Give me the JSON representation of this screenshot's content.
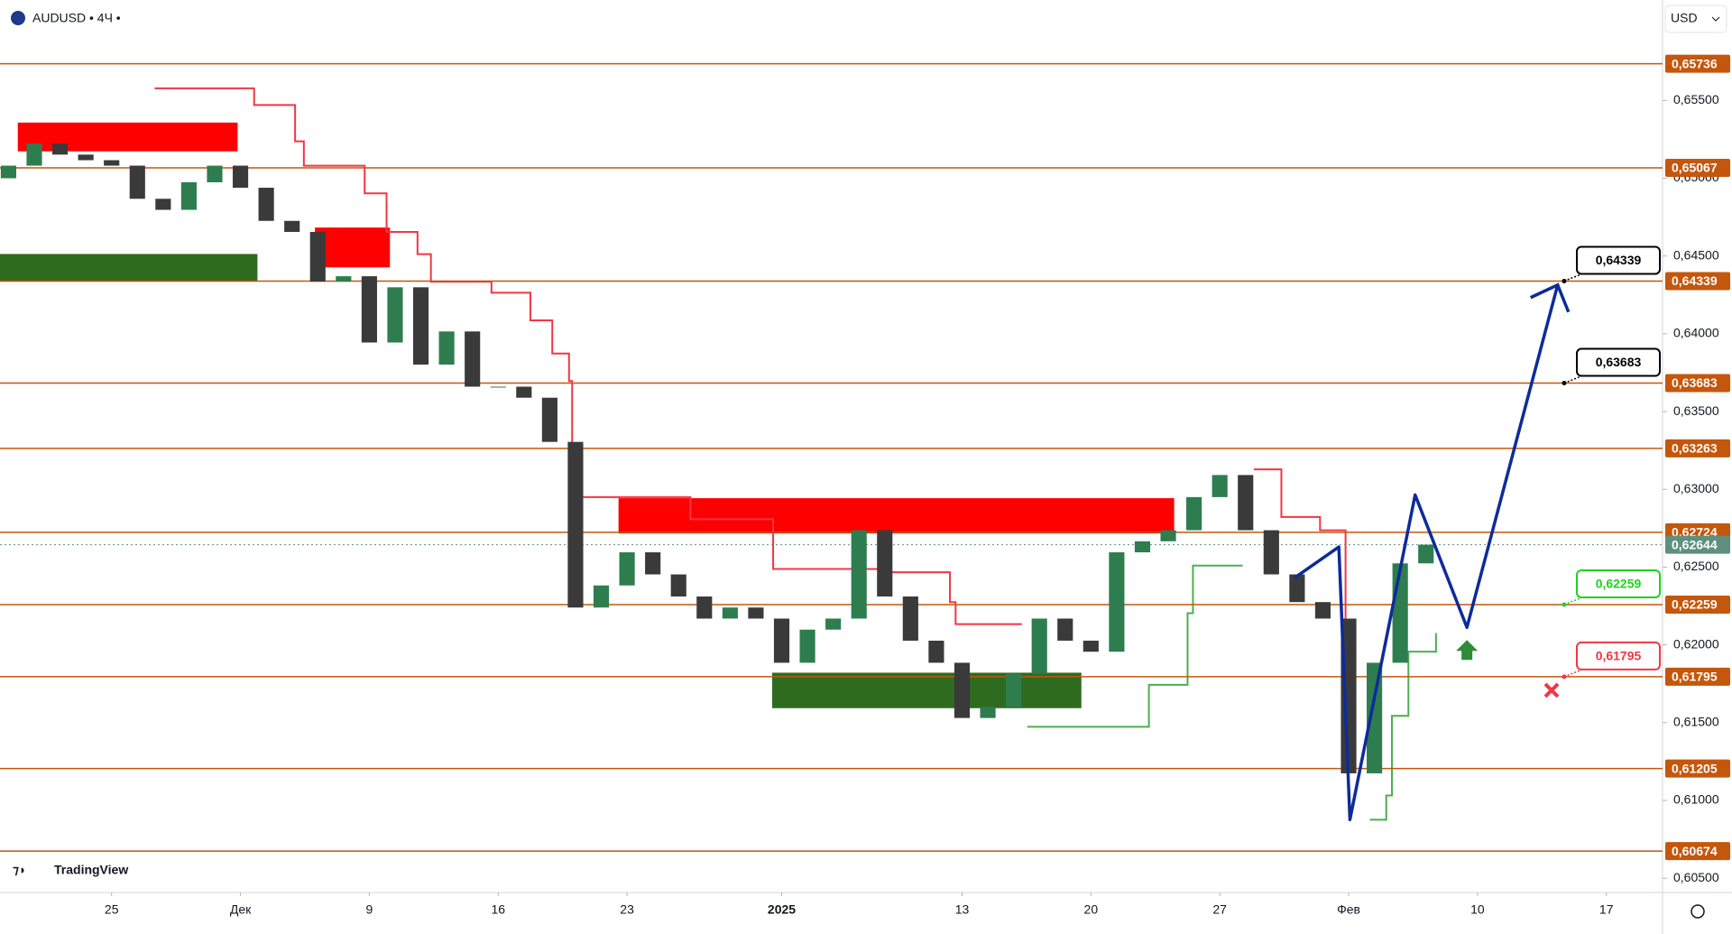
{
  "header": {
    "symbol": "AUDUSD • 4Ч •",
    "currency": "USD",
    "logo": "TradingView"
  },
  "chart_data": {
    "type": "candlestick",
    "x": [
      -4,
      -3,
      -2,
      -1,
      0,
      1,
      2,
      3,
      4,
      5,
      6,
      7,
      8,
      9,
      10,
      11,
      12,
      13,
      14,
      15,
      16,
      17,
      18,
      19,
      20,
      21,
      22,
      23,
      24,
      25,
      26,
      27,
      28,
      29,
      30,
      31,
      32,
      33,
      34,
      35,
      36,
      37,
      38,
      39,
      40,
      41,
      42,
      43,
      44,
      45,
      46,
      47,
      48,
      49,
      50,
      51
    ],
    "open": [
      0.65,
      0.65081,
      0.65223,
      0.65152,
      0.65116,
      0.65081,
      0.64868,
      0.64797,
      0.64974,
      0.65081,
      0.64939,
      0.64726,
      0.64655,
      0.64335,
      0.6437,
      0.63944,
      0.64299,
      0.63802,
      0.64015,
      0.6366,
      0.6366,
      0.63589,
      0.63305,
      0.6224,
      0.62382,
      0.62595,
      0.62453,
      0.62311,
      0.62169,
      0.6224,
      0.62169,
      0.61885,
      0.62098,
      0.62169,
      0.62737,
      0.62311,
      0.62027,
      0.61885,
      0.6153,
      0.61601,
      0.61814,
      0.62169,
      0.62027,
      0.61956,
      0.62595,
      0.62666,
      0.62737,
      0.6295,
      0.63092,
      0.62737,
      0.62453,
      0.62275,
      0.62169,
      0.61174,
      0.61885,
      0.62524
    ],
    "close": [
      0.65081,
      0.65223,
      0.65152,
      0.65116,
      0.65081,
      0.64868,
      0.64797,
      0.64974,
      0.65081,
      0.64939,
      0.64726,
      0.64655,
      0.64335,
      0.6437,
      0.63944,
      0.64299,
      0.63802,
      0.64015,
      0.6366,
      0.6366,
      0.63589,
      0.63305,
      0.6224,
      0.62382,
      0.62595,
      0.62453,
      0.62311,
      0.62169,
      0.6224,
      0.62169,
      0.61885,
      0.62098,
      0.62169,
      0.62737,
      0.62311,
      0.62027,
      0.61885,
      0.6153,
      0.61601,
      0.61814,
      0.62169,
      0.62027,
      0.61956,
      0.62595,
      0.62666,
      0.62737,
      0.6295,
      0.63092,
      0.62737,
      0.62453,
      0.62275,
      0.62169,
      0.61174,
      0.61885,
      0.62524,
      0.62644
    ],
    "up_color": "#2e7d4f",
    "down_color": "#3a3a3a",
    "xlim": [
      -4.33,
      60.18
    ],
    "xticks": [
      {
        "value": 0,
        "label": "25"
      },
      {
        "value": 5,
        "label": "Дек"
      },
      {
        "value": 10,
        "label": "9"
      },
      {
        "value": 15,
        "label": "16"
      },
      {
        "value": 20,
        "label": "23"
      },
      {
        "value": 26,
        "label": "2025"
      },
      {
        "value": 33,
        "label": "13"
      },
      {
        "value": 38,
        "label": "20"
      },
      {
        "value": 43,
        "label": "27"
      },
      {
        "value": 48,
        "label": "Фев"
      },
      {
        "value": 53,
        "label": "10"
      },
      {
        "value": 58,
        "label": "17"
      }
    ],
    "ylim": [
      0.60408,
      0.66146
    ],
    "yticks": [
      {
        "value": 0.655,
        "label": "0,65500"
      },
      {
        "value": 0.65,
        "label": "0,65000"
      },
      {
        "value": 0.645,
        "label": "0,64500"
      },
      {
        "value": 0.64,
        "label": "0,64000"
      },
      {
        "value": 0.635,
        "label": "0,63500"
      },
      {
        "value": 0.63,
        "label": "0,63000"
      },
      {
        "value": 0.625,
        "label": "0,62500"
      },
      {
        "value": 0.62,
        "label": "0,62000"
      },
      {
        "value": 0.615,
        "label": "0,61500"
      },
      {
        "value": 0.61,
        "label": "0,61000"
      },
      {
        "value": 0.605,
        "label": "0,60500"
      }
    ],
    "levels": {
      "color": "#c4570c",
      "values": [
        0.65736,
        0.65067,
        0.64339,
        0.63683,
        0.63263,
        0.62724,
        0.62259,
        0.61795,
        0.61205,
        0.60674
      ],
      "labels": [
        "0,65736",
        "0,65067",
        "0,64339",
        "0,63683",
        "0,63263",
        "0,62724",
        "0,62259",
        "0,61795",
        "0,61205",
        "0,60674"
      ]
    },
    "last_price": {
      "value": 0.62644,
      "label": "0,62644",
      "color": "#5e8f7f"
    },
    "zones": [
      {
        "color": "#ff0000",
        "x": [
          -3.64,
          4.89
        ],
        "y": [
          0.65173,
          0.65358
        ]
      },
      {
        "color": "#2e6b1f",
        "x": [
          -4.33,
          5.66
        ],
        "y": [
          0.64335,
          0.64513
        ]
      },
      {
        "color": "#ff0000",
        "x": [
          7.89,
          10.8
        ],
        "y": [
          0.64427,
          0.64683
        ]
      },
      {
        "color": "#ff0000",
        "x": [
          19.67,
          41.23
        ],
        "y": [
          0.62716,
          0.62943
        ]
      },
      {
        "color": "#2e6b1f",
        "x": [
          25.63,
          37.63
        ],
        "y": [
          0.61593,
          0.61821
        ]
      }
    ],
    "trails": [
      {
        "color": "#f23645",
        "x": [
          1.67,
          5.53,
          7.12,
          7.46,
          9.82,
          10.67,
          11.87,
          12.39,
          14.74,
          16.25,
          17.1,
          17.75,
          17.87,
          22.46,
          25.67,
          29.96,
          32.53,
          32.75,
          35.32
        ],
        "values": [
          0.65578,
          0.65471,
          0.65237,
          0.65081,
          0.64903,
          0.64655,
          0.64512,
          0.64335,
          0.64264,
          0.64086,
          0.63873,
          0.63696,
          0.6295,
          0.62808,
          0.62488,
          0.62467,
          0.62275,
          0.62133,
          0.62133
        ]
      },
      {
        "color": "#4caf50",
        "x": [
          35.53,
          40.25,
          41.75,
          41.96,
          43.89
        ],
        "values": [
          0.61473,
          0.61743,
          0.62204,
          0.6251,
          0.6251
        ]
      },
      {
        "color": "#f23645",
        "x": [
          44.32,
          45.39,
          46.89,
          47.88
        ],
        "values": [
          0.63128,
          0.62822,
          0.62737,
          0.62169
        ]
      },
      {
        "color": "#4caf50",
        "x": [
          48.82,
          49.46,
          49.68,
          50.32,
          51.39
        ],
        "values": [
          0.60876,
          0.61032,
          0.61544,
          0.61956,
          0.62076
        ]
      }
    ],
    "zigzag": {
      "color": "#0d2c9a",
      "x": [
        45.91,
        47.62,
        48.05,
        50.58,
        52.59,
        56.11
      ],
      "values": [
        0.62432,
        0.6263,
        0.60876,
        0.62964,
        0.62112,
        0.64314
      ]
    },
    "callouts": [
      {
        "label": "0,64339",
        "value": 0.64339,
        "color": "#000000"
      },
      {
        "label": "0,63683",
        "value": 0.63683,
        "color": "#000000"
      },
      {
        "label": "0,62259",
        "value": 0.62259,
        "color": "#22d11f"
      },
      {
        "label": "0,61795",
        "value": 0.61795,
        "color": "#f23645"
      }
    ]
  }
}
